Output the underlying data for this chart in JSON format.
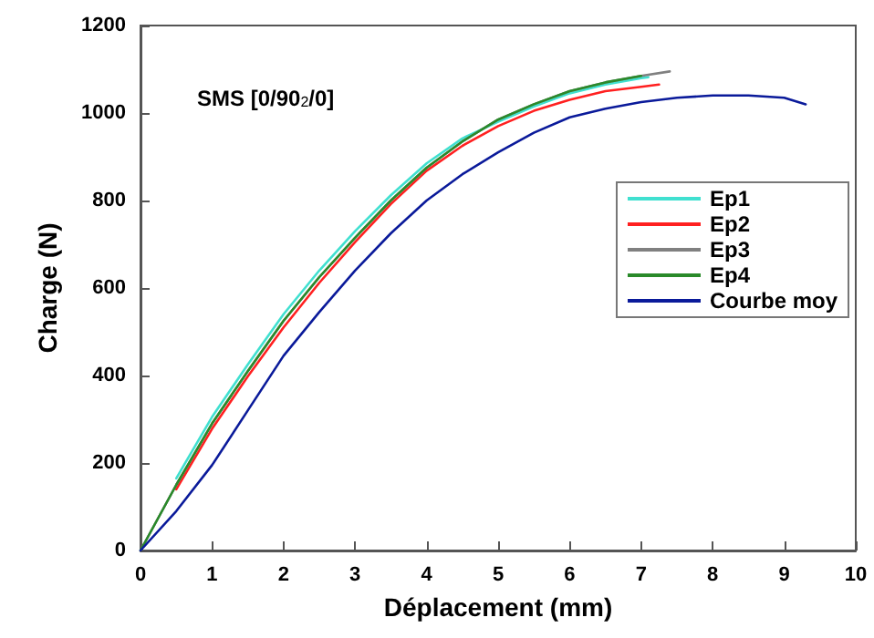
{
  "chart_data": {
    "type": "line",
    "xlabel": "Déplacement (mm)",
    "ylabel": "Charge (N)",
    "annotations": [
      "SMS [0/90$_{2}$/0]"
    ],
    "xlim": [
      0,
      10
    ],
    "xticks": [
      0,
      1,
      2,
      3,
      4,
      5,
      6,
      7,
      8,
      9,
      10
    ],
    "ylim": [
      0,
      1200
    ],
    "yticks": [
      0,
      200,
      400,
      600,
      800,
      1000,
      1200
    ],
    "grid": false,
    "legend": "right",
    "marker": "none",
    "line_style": "solid",
    "series": [
      {
        "name": "Ep1",
        "color": "#40e0d0",
        "x": [
          0.5,
          1,
          1.5,
          2,
          2.5,
          3,
          3.5,
          4,
          4.5,
          5,
          5.5,
          6,
          6.5,
          7,
          7.1
        ],
        "values": [
          165,
          305,
          425,
          540,
          640,
          730,
          812,
          885,
          942,
          980,
          1015,
          1045,
          1065,
          1080,
          1082
        ]
      },
      {
        "name": "Ep2",
        "color": "#ff2020",
        "x": [
          0.5,
          1,
          1.5,
          2,
          2.5,
          3,
          3.5,
          4,
          4.5,
          5,
          5.5,
          6,
          6.5,
          7,
          7.25
        ],
        "values": [
          140,
          278,
          398,
          510,
          612,
          705,
          792,
          868,
          925,
          970,
          1005,
          1030,
          1050,
          1060,
          1065
        ]
      },
      {
        "name": "Ep3",
        "color": "#808080",
        "x": [
          0,
          0.5,
          1,
          1.5,
          2,
          2.5,
          3,
          3.5,
          4,
          4.5,
          5,
          5.5,
          6,
          6.5,
          7,
          7.4
        ],
        "values": [
          0,
          150,
          290,
          410,
          525,
          625,
          715,
          800,
          875,
          935,
          985,
          1020,
          1050,
          1070,
          1085,
          1095
        ]
      },
      {
        "name": "Ep4",
        "color": "#2a8a2a",
        "x": [
          0,
          0.5,
          1,
          1.5,
          2,
          2.5,
          3,
          3.5,
          4,
          4.5,
          5,
          5.5,
          6,
          6.5,
          7
        ],
        "values": [
          0,
          150,
          290,
          410,
          525,
          625,
          715,
          800,
          875,
          935,
          985,
          1020,
          1050,
          1070,
          1085
        ]
      },
      {
        "name": "Courbe moy",
        "color": "#0a1a9a",
        "x": [
          0,
          0.5,
          1,
          1.5,
          2,
          2.5,
          3,
          3.5,
          4,
          4.5,
          5,
          5.5,
          6,
          6.5,
          7,
          7.5,
          8,
          8.5,
          9,
          9.3
        ],
        "values": [
          0,
          90,
          195,
          320,
          445,
          545,
          640,
          725,
          800,
          860,
          910,
          955,
          990,
          1010,
          1025,
          1035,
          1040,
          1040,
          1035,
          1020
        ]
      }
    ]
  }
}
